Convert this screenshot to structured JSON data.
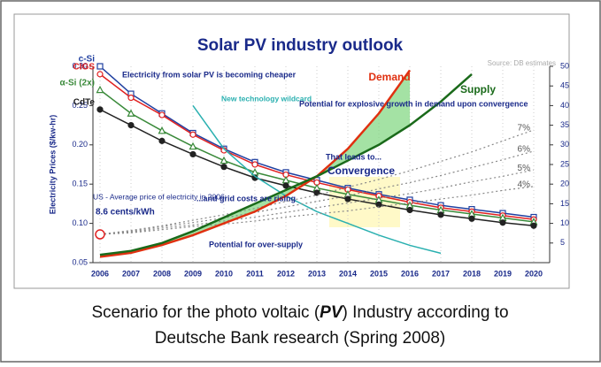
{
  "chart_data": {
    "type": "line",
    "title": "Solar PV industry outlook",
    "source": "Source: DB estimates",
    "y_label": "Electricity Prices ($/kw-hr)",
    "categories": [
      "2006",
      "2007",
      "2008",
      "2009",
      "2010",
      "2011",
      "2012",
      "2013",
      "2014",
      "2015",
      "2016",
      "2017",
      "2018",
      "2019",
      "2020"
    ],
    "ylim": [
      0.05,
      0.3
    ],
    "yticks": [
      0.05,
      {
        "value": 0.1,
        "label": "0.10"
      },
      0.15,
      {
        "value": 0.2,
        "label": "0.20"
      },
      0.25,
      {
        "value": 0.3,
        "label": "0.30"
      }
    ],
    "y2lim": [
      0,
      50
    ],
    "y2ticks": [
      5,
      10,
      15,
      20,
      25,
      30,
      35,
      40,
      45,
      50
    ],
    "series": [
      {
        "name": "c-Si",
        "color": "#1f3fa0",
        "marker": "square",
        "values": [
          0.3,
          0.265,
          0.24,
          0.215,
          0.195,
          0.178,
          0.165,
          0.155,
          0.145,
          0.137,
          0.13,
          0.123,
          0.118,
          0.113,
          0.108
        ]
      },
      {
        "name": "CIGS",
        "color": "#e02020",
        "marker": "circle-open",
        "values": [
          0.29,
          0.26,
          0.238,
          0.213,
          0.193,
          0.175,
          0.162,
          0.152,
          0.143,
          0.135,
          0.127,
          0.12,
          0.115,
          0.11,
          0.105
        ]
      },
      {
        "name": "α-Si (2x)",
        "color": "#3a8a3a",
        "marker": "triangle",
        "values": [
          0.27,
          0.24,
          0.218,
          0.198,
          0.18,
          0.165,
          0.155,
          0.145,
          0.137,
          0.13,
          0.123,
          0.117,
          0.112,
          0.107,
          0.102
        ]
      },
      {
        "name": "CdTe",
        "color": "#222222",
        "marker": "circle",
        "values": [
          0.245,
          0.225,
          0.205,
          0.188,
          0.172,
          0.158,
          0.148,
          0.139,
          0.131,
          0.124,
          0.117,
          0.111,
          0.106,
          0.101,
          0.097
        ]
      },
      {
        "name": "New technology wildcard",
        "color": "#2ab0b0",
        "values": [
          null,
          null,
          null,
          0.25,
          0.195,
          0.16,
          0.135,
          0.115,
          0.1,
          0.085,
          0.072,
          0.062,
          null,
          null,
          null
        ]
      },
      {
        "name": "7%",
        "color": "#888888",
        "dashed": true,
        "values": [
          0.086,
          0.091,
          0.097,
          0.104,
          0.111,
          0.119,
          0.128,
          0.136,
          0.146,
          0.156,
          0.167,
          0.179,
          0.191,
          0.205,
          0.219
        ]
      },
      {
        "name": "6%",
        "color": "#888888",
        "dashed": true,
        "values": [
          0.086,
          0.09,
          0.096,
          0.101,
          0.107,
          0.114,
          0.121,
          0.128,
          0.135,
          0.144,
          0.152,
          0.161,
          0.171,
          0.181,
          0.192
        ]
      },
      {
        "name": "5%",
        "color": "#888888",
        "dashed": true,
        "values": [
          0.086,
          0.089,
          0.094,
          0.098,
          0.103,
          0.108,
          0.114,
          0.12,
          0.126,
          0.132,
          0.138,
          0.145,
          0.153,
          0.16,
          0.168
        ]
      },
      {
        "name": "4%",
        "color": "#888888",
        "dashed": true,
        "values": [
          0.086,
          0.088,
          0.092,
          0.096,
          0.099,
          0.103,
          0.108,
          0.112,
          0.116,
          0.121,
          0.126,
          0.131,
          0.136,
          0.142,
          0.147
        ]
      },
      {
        "name": "Demand",
        "color": "#e03010",
        "axis": "y2",
        "values": [
          1.5,
          2.5,
          4.5,
          7,
          10,
          13,
          17,
          22,
          29,
          38,
          49,
          null,
          null,
          null,
          null
        ]
      },
      {
        "name": "Supply",
        "color": "#1a6a1a",
        "axis": "y2",
        "values": [
          2,
          3,
          5,
          8,
          11.5,
          15,
          18.5,
          22,
          26,
          30,
          35,
          41,
          48,
          null,
          null
        ]
      }
    ],
    "annotations": [
      "Electricity from solar PV is becoming cheaper",
      "Potential for explosive growth in demand upon convergence",
      "That leads to...",
      "Convergence",
      "US - Average price of electricity in 2006:",
      "8.6 cents/kWh",
      "...and grid costs are rising",
      "Potential for over-supply"
    ],
    "caption": {
      "line1_pre": "Scenario for the photo voltaic (",
      "line1_bold": "PV",
      "line1_post": ") Industry according to",
      "line2": "Deutsche Bank research (Spring 2008)"
    }
  }
}
